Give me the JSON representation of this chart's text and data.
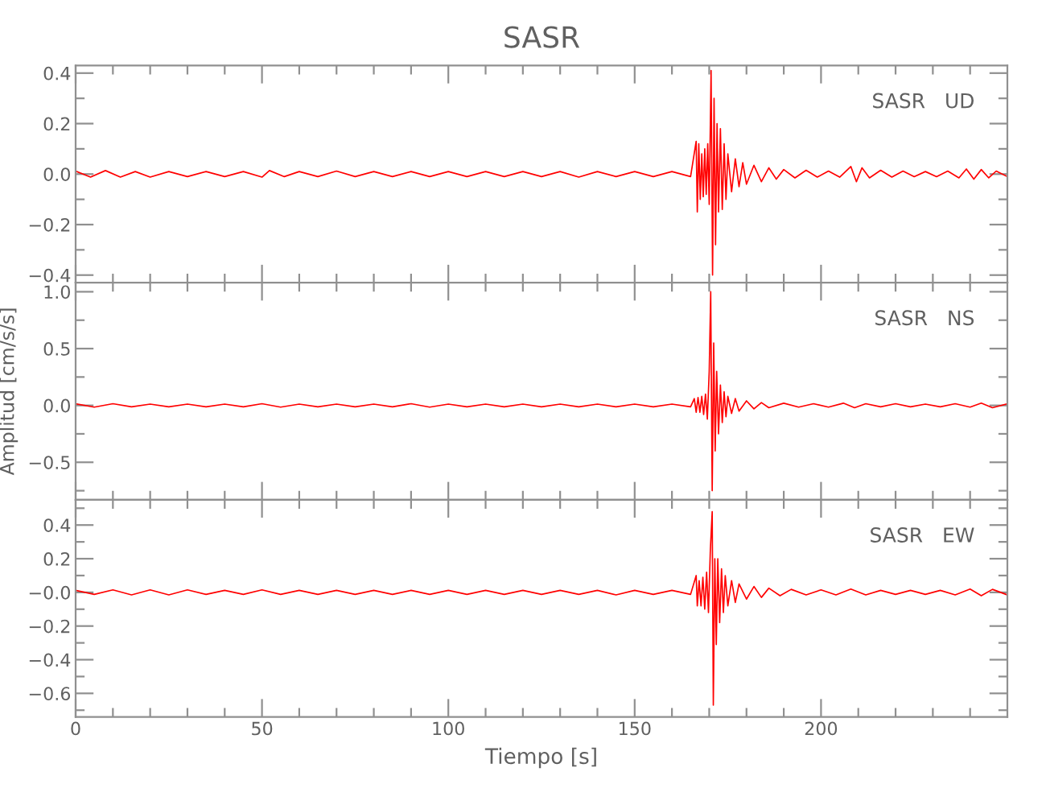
{
  "chart_data": [
    {
      "type": "line",
      "title": "SASR",
      "annotations": [
        "SASR   UD"
      ],
      "tick_labels": "y",
      "xlim": [
        0,
        250
      ],
      "ylim": [
        -0.43,
        0.43
      ],
      "xticks": [
        0,
        {
          "value": 10,
          "label": null
        },
        {
          "value": 20,
          "label": null
        },
        {
          "value": 30,
          "label": null
        },
        {
          "value": 40,
          "label": null
        },
        50,
        {
          "value": 60,
          "label": null
        },
        {
          "value": 70,
          "label": null
        },
        {
          "value": 80,
          "label": null
        },
        {
          "value": 90,
          "label": null
        },
        100,
        {
          "value": 110,
          "label": null
        },
        {
          "value": 120,
          "label": null
        },
        {
          "value": 130,
          "label": null
        },
        {
          "value": 140,
          "label": null
        },
        150,
        {
          "value": 160,
          "label": null
        },
        {
          "value": 170,
          "label": null
        },
        {
          "value": 180,
          "label": null
        },
        {
          "value": 190,
          "label": null
        },
        200,
        {
          "value": 210,
          "label": null
        },
        {
          "value": 220,
          "label": null
        },
        {
          "value": 230,
          "label": null
        },
        {
          "value": 240,
          "label": null
        }
      ],
      "yticks": [
        {
          "value": 0.4,
          "label": "0.4"
        },
        {
          "value": 0.3,
          "label": null
        },
        {
          "value": 0.2,
          "label": "0.2"
        },
        {
          "value": 0.1,
          "label": null
        },
        {
          "value": 0,
          "label": "0.0"
        },
        {
          "value": -0.1,
          "label": null
        },
        {
          "value": -0.2,
          "label": "−0.2"
        },
        {
          "value": -0.3,
          "label": null
        },
        {
          "value": -0.4,
          "label": "−0.4"
        }
      ],
      "x": [
        0,
        4,
        8,
        12,
        16,
        20,
        25,
        30,
        35,
        40,
        45,
        50,
        52,
        56,
        60,
        65,
        70,
        75,
        80,
        85,
        90,
        95,
        100,
        105,
        110,
        115,
        120,
        125,
        130,
        135,
        140,
        145,
        150,
        155,
        160,
        165,
        166.5,
        166.8,
        167.2,
        167.6,
        168,
        168.4,
        168.8,
        169.2,
        169.6,
        170,
        170.5,
        170.9,
        171.3,
        171.7,
        172.1,
        172.5,
        173,
        173.5,
        174,
        174.5,
        175,
        176,
        177,
        178,
        179,
        180,
        182,
        184,
        186,
        188,
        190,
        193,
        196,
        199,
        202,
        205,
        208,
        209.5,
        211,
        213,
        216,
        219,
        222,
        225,
        228,
        231,
        234,
        237,
        239,
        241,
        243,
        245,
        247,
        250
      ],
      "series": [
        {
          "color": "#ff0000",
          "values": [
            0.012,
            -0.012,
            0.014,
            -0.012,
            0.01,
            -0.012,
            0.01,
            -0.01,
            0.01,
            -0.01,
            0.01,
            -0.012,
            0.014,
            -0.01,
            0.01,
            -0.01,
            0.012,
            -0.01,
            0.01,
            -0.01,
            0.01,
            -0.01,
            0.01,
            -0.01,
            0.01,
            -0.01,
            0.01,
            -0.01,
            0.01,
            -0.012,
            0.01,
            -0.01,
            0.01,
            -0.01,
            0.01,
            -0.01,
            0.13,
            -0.15,
            0.12,
            -0.1,
            0.08,
            -0.09,
            0.1,
            -0.08,
            0.12,
            -0.12,
            0.41,
            -0.4,
            0.3,
            -0.28,
            0.2,
            -0.15,
            0.18,
            -0.14,
            0.12,
            -0.1,
            0.08,
            -0.07,
            0.06,
            -0.05,
            0.045,
            -0.04,
            0.035,
            -0.03,
            0.025,
            -0.02,
            0.018,
            -0.015,
            0.015,
            -0.012,
            0.012,
            -0.012,
            0.03,
            -0.03,
            0.025,
            -0.015,
            0.015,
            -0.012,
            0.012,
            -0.01,
            0.01,
            -0.01,
            0.012,
            -0.015,
            0.02,
            -0.02,
            0.018,
            -0.015,
            0.012,
            -0.01
          ]
        }
      ]
    },
    {
      "type": "line",
      "annotations": [
        "SASR   NS"
      ],
      "ylabel": "Amplitud [cm/s/s]",
      "tick_labels": "y",
      "xlim": [
        0,
        250
      ],
      "ylim": [
        -0.83,
        1.08
      ],
      "xticks": [
        0,
        {
          "value": 10,
          "label": null
        },
        {
          "value": 20,
          "label": null
        },
        {
          "value": 30,
          "label": null
        },
        {
          "value": 40,
          "label": null
        },
        50,
        {
          "value": 60,
          "label": null
        },
        {
          "value": 70,
          "label": null
        },
        {
          "value": 80,
          "label": null
        },
        {
          "value": 90,
          "label": null
        },
        100,
        {
          "value": 110,
          "label": null
        },
        {
          "value": 120,
          "label": null
        },
        {
          "value": 130,
          "label": null
        },
        {
          "value": 140,
          "label": null
        },
        150,
        {
          "value": 160,
          "label": null
        },
        {
          "value": 170,
          "label": null
        },
        {
          "value": 180,
          "label": null
        },
        {
          "value": 190,
          "label": null
        },
        200,
        {
          "value": 210,
          "label": null
        },
        {
          "value": 220,
          "label": null
        },
        {
          "value": 230,
          "label": null
        },
        {
          "value": 240,
          "label": null
        }
      ],
      "yticks": [
        {
          "value": 1.0,
          "label": "1.0"
        },
        {
          "value": 0.75,
          "label": null
        },
        {
          "value": 0.5,
          "label": "0.5"
        },
        {
          "value": 0.25,
          "label": null
        },
        {
          "value": 0,
          "label": "0.0"
        },
        {
          "value": -0.25,
          "label": null
        },
        {
          "value": -0.5,
          "label": "−0.5"
        },
        {
          "value": -0.75,
          "label": null
        }
      ],
      "x": [
        0,
        5,
        10,
        15,
        20,
        25,
        30,
        35,
        40,
        45,
        50,
        55,
        60,
        65,
        70,
        75,
        80,
        85,
        90,
        95,
        100,
        105,
        110,
        115,
        120,
        125,
        130,
        135,
        140,
        145,
        150,
        155,
        160,
        165,
        166,
        166.5,
        167,
        167.5,
        168,
        168.5,
        169,
        169.5,
        170,
        170.4,
        170.8,
        171.2,
        171.6,
        172,
        172.5,
        173,
        173.5,
        174,
        174.5,
        175,
        176,
        177,
        178,
        180,
        182,
        184,
        186,
        190,
        194,
        198,
        202,
        206,
        209,
        212,
        216,
        220,
        224,
        228,
        232,
        236,
        240,
        243,
        246,
        250
      ],
      "series": [
        {
          "color": "#ff0000",
          "values": [
            0.015,
            -0.015,
            0.015,
            -0.012,
            0.012,
            -0.012,
            0.012,
            -0.012,
            0.012,
            -0.012,
            0.015,
            -0.015,
            0.012,
            -0.012,
            0.012,
            -0.012,
            0.012,
            -0.012,
            0.015,
            -0.015,
            0.012,
            -0.012,
            0.012,
            -0.012,
            0.012,
            -0.012,
            0.012,
            -0.012,
            0.012,
            -0.012,
            0.012,
            -0.012,
            0.012,
            -0.012,
            0.06,
            -0.06,
            0.07,
            -0.06,
            0.08,
            -0.08,
            0.1,
            -0.12,
            0.3,
            1.0,
            -0.75,
            0.55,
            -0.4,
            0.3,
            -0.25,
            0.18,
            -0.15,
            0.12,
            -0.1,
            0.08,
            -0.07,
            0.06,
            -0.05,
            0.04,
            -0.03,
            0.025,
            -0.02,
            0.02,
            -0.015,
            0.015,
            -0.015,
            0.02,
            -0.02,
            0.015,
            -0.012,
            0.015,
            -0.012,
            0.012,
            -0.012,
            0.015,
            -0.015,
            0.02,
            -0.02,
            0.015
          ]
        }
      ]
    },
    {
      "type": "line",
      "annotations": [
        "SASR   EW"
      ],
      "xlabel": "Tiempo [s]",
      "xlim": [
        0,
        250
      ],
      "ylim": [
        -0.74,
        0.55
      ],
      "xticks": [
        0,
        {
          "value": 10,
          "label": null
        },
        {
          "value": 20,
          "label": null
        },
        {
          "value": 30,
          "label": null
        },
        {
          "value": 40,
          "label": null
        },
        50,
        {
          "value": 60,
          "label": null
        },
        {
          "value": 70,
          "label": null
        },
        {
          "value": 80,
          "label": null
        },
        {
          "value": 90,
          "label": null
        },
        100,
        {
          "value": 110,
          "label": null
        },
        {
          "value": 120,
          "label": null
        },
        {
          "value": 130,
          "label": null
        },
        {
          "value": 140,
          "label": null
        },
        150,
        {
          "value": 160,
          "label": null
        },
        {
          "value": 170,
          "label": null
        },
        {
          "value": 180,
          "label": null
        },
        {
          "value": 190,
          "label": null
        },
        200,
        {
          "value": 210,
          "label": null
        },
        {
          "value": 220,
          "label": null
        },
        {
          "value": 230,
          "label": null
        },
        {
          "value": 240,
          "label": null
        }
      ],
      "yticks": [
        {
          "value": 0.5,
          "label": null
        },
        {
          "value": 0.4,
          "label": "0.4"
        },
        {
          "value": 0.3,
          "label": null
        },
        {
          "value": 0.2,
          "label": "0.2"
        },
        {
          "value": 0.1,
          "label": null
        },
        {
          "value": 0,
          "label": "−0.0"
        },
        {
          "value": -0.1,
          "label": null
        },
        {
          "value": -0.2,
          "label": "−0.2"
        },
        {
          "value": -0.3,
          "label": null
        },
        {
          "value": -0.4,
          "label": "−0.4"
        },
        {
          "value": -0.5,
          "label": null
        },
        {
          "value": -0.6,
          "label": "−0.6"
        },
        {
          "value": -0.7,
          "label": null
        }
      ],
      "x": [
        0,
        5,
        10,
        15,
        20,
        25,
        30,
        35,
        40,
        45,
        50,
        55,
        60,
        65,
        70,
        75,
        80,
        85,
        90,
        95,
        100,
        105,
        110,
        115,
        120,
        125,
        130,
        135,
        140,
        145,
        150,
        155,
        160,
        165,
        166.5,
        166.8,
        167.3,
        167.8,
        168.3,
        168.8,
        169.3,
        169.8,
        170.3,
        170.8,
        171.1,
        171.5,
        171.9,
        172.3,
        172.8,
        173.3,
        173.8,
        174.3,
        175,
        176,
        177,
        178,
        180,
        182,
        184,
        186,
        189,
        192,
        196,
        200,
        204,
        208,
        212,
        216,
        220,
        224,
        228,
        232,
        236,
        240,
        243,
        246,
        250
      ],
      "series": [
        {
          "color": "#ff0000",
          "values": [
            0.012,
            -0.012,
            0.015,
            -0.015,
            0.015,
            -0.015,
            0.015,
            -0.012,
            0.012,
            -0.012,
            0.015,
            -0.012,
            0.012,
            -0.012,
            0.012,
            -0.012,
            0.012,
            -0.012,
            0.012,
            -0.012,
            0.012,
            -0.012,
            0.012,
            -0.012,
            0.012,
            -0.012,
            0.012,
            -0.012,
            0.012,
            -0.015,
            0.012,
            -0.012,
            0.012,
            -0.012,
            0.1,
            -0.08,
            0.07,
            -0.08,
            0.09,
            -0.1,
            0.12,
            -0.12,
            0.25,
            0.48,
            -0.67,
            0.2,
            -0.31,
            0.2,
            -0.18,
            0.14,
            -0.12,
            0.1,
            -0.08,
            0.07,
            -0.06,
            0.05,
            -0.04,
            0.035,
            -0.03,
            0.025,
            -0.02,
            0.018,
            -0.015,
            0.015,
            -0.015,
            0.02,
            -0.015,
            0.012,
            -0.012,
            0.012,
            -0.012,
            0.012,
            -0.015,
            0.02,
            -0.02,
            0.018,
            -0.015
          ]
        }
      ]
    }
  ]
}
